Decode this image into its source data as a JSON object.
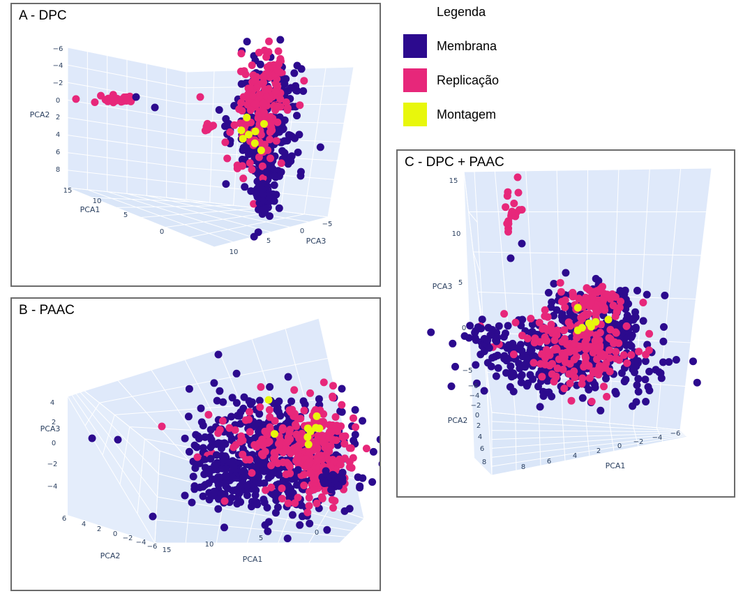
{
  "legend": {
    "title": "Legenda",
    "items": [
      {
        "label": "Membrana",
        "color": "#2c0a8e"
      },
      {
        "label": "Replicação",
        "color": "#e7277a"
      },
      {
        "label": "Montagem",
        "color": "#e8f70c"
      }
    ]
  },
  "chart_data": [
    {
      "id": "A",
      "type": "scatter",
      "title": "A - DPC",
      "axes": {
        "PCA1": {
          "label": "PCA1",
          "ticks": [
            "15",
            "10",
            "5",
            "0"
          ]
        },
        "PCA2": {
          "label": "PCA2",
          "ticks": [
            "−6",
            "−4",
            "−2",
            "0",
            "2",
            "4",
            "6",
            "8"
          ]
        },
        "PCA3": {
          "label": "PCA3",
          "ticks": [
            "10",
            "5",
            "0",
            "−5"
          ]
        }
      },
      "series": [
        {
          "name": "Membrana",
          "approx_points": 500,
          "pca1_range": [
            -2,
            6
          ],
          "pca2_range": [
            -4,
            8
          ],
          "pca3_range": [
            -5,
            8
          ]
        },
        {
          "name": "Replicação",
          "approx_points": 260,
          "pca1_range": [
            -2,
            16
          ],
          "pca2_range": [
            -6,
            6
          ],
          "pca3_range": [
            -5,
            8
          ]
        },
        {
          "name": "Montagem",
          "approx_points": 8,
          "pca1_range": [
            0,
            3
          ],
          "pca2_range": [
            1,
            5
          ],
          "pca3_range": [
            0,
            3
          ]
        }
      ]
    },
    {
      "id": "B",
      "type": "scatter",
      "title": "B - PAAC",
      "axes": {
        "PCA1": {
          "label": "PCA1",
          "ticks": [
            "15",
            "10",
            "5",
            "0"
          ]
        },
        "PCA2": {
          "label": "PCA2",
          "ticks": [
            "6",
            "4",
            "2",
            "0",
            "−2",
            "−4",
            "−6"
          ]
        },
        "PCA3": {
          "label": "PCA3",
          "ticks": [
            "4",
            "2",
            "0",
            "−2",
            "−4"
          ]
        }
      },
      "series": [
        {
          "name": "Membrana",
          "approx_points": 600,
          "pca1_range": [
            -3,
            16
          ],
          "pca2_range": [
            -6,
            6
          ],
          "pca3_range": [
            -4,
            4
          ]
        },
        {
          "name": "Replicação",
          "approx_points": 330,
          "pca1_range": [
            -3,
            10
          ],
          "pca2_range": [
            -6,
            6
          ],
          "pca3_range": [
            -4,
            4
          ]
        },
        {
          "name": "Montagem",
          "approx_points": 9,
          "pca1_range": [
            0,
            5
          ],
          "pca2_range": [
            -3,
            3
          ],
          "pca3_range": [
            -1,
            3
          ]
        }
      ]
    },
    {
      "id": "C",
      "type": "scatter",
      "title": "C - DPC + PAAC",
      "axes": {
        "PCA1": {
          "label": "PCA1",
          "ticks": [
            "8",
            "6",
            "4",
            "2",
            "0",
            "−2",
            "−4",
            "−6"
          ]
        },
        "PCA2": {
          "label": "PCA2",
          "ticks": [
            "−6",
            "−4",
            "−2",
            "0",
            "2",
            "4",
            "6",
            "8"
          ]
        },
        "PCA3": {
          "label": "PCA3",
          "ticks": [
            "15",
            "10",
            "5",
            "0",
            "−5"
          ]
        }
      },
      "series": [
        {
          "name": "Membrana",
          "approx_points": 580,
          "pca1_range": [
            -6,
            8
          ],
          "pca2_range": [
            -6,
            8
          ],
          "pca3_range": [
            -7,
            11
          ]
        },
        {
          "name": "Replicação",
          "approx_points": 300,
          "pca1_range": [
            -4,
            6
          ],
          "pca2_range": [
            -6,
            8
          ],
          "pca3_range": [
            -6,
            15
          ]
        },
        {
          "name": "Montagem",
          "approx_points": 7,
          "pca1_range": [
            -2,
            2
          ],
          "pca2_range": [
            -1,
            3
          ],
          "pca3_range": [
            -3,
            1
          ]
        }
      ]
    }
  ]
}
